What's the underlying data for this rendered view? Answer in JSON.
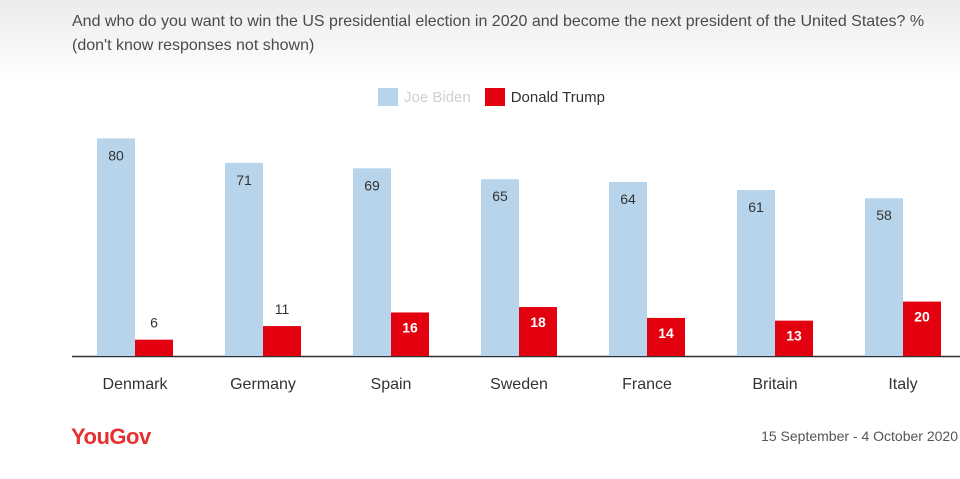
{
  "title": "And who do you want to win the US presidential election in 2020 and become the next president of the United States? % (don't know responses not shown)",
  "colors": {
    "biden": "#b7d4ea",
    "trump": "#e3000f",
    "axis": "#333333",
    "label": "#333333"
  },
  "chart_data": {
    "type": "bar",
    "categories": [
      "Denmark",
      "Germany",
      "Spain",
      "Sweden",
      "France",
      "Britain",
      "Italy"
    ],
    "series": [
      {
        "name": "Joe Biden",
        "values": [
          80,
          71,
          69,
          65,
          64,
          61,
          58
        ]
      },
      {
        "name": "Donald Trump",
        "values": [
          6,
          11,
          16,
          18,
          14,
          13,
          20
        ]
      }
    ],
    "ylim": [
      0,
      100
    ],
    "grid": false,
    "legend_position": "top-center"
  },
  "footer": {
    "logo": "YouGov",
    "date_range": "15 September - 4 October 2020"
  }
}
